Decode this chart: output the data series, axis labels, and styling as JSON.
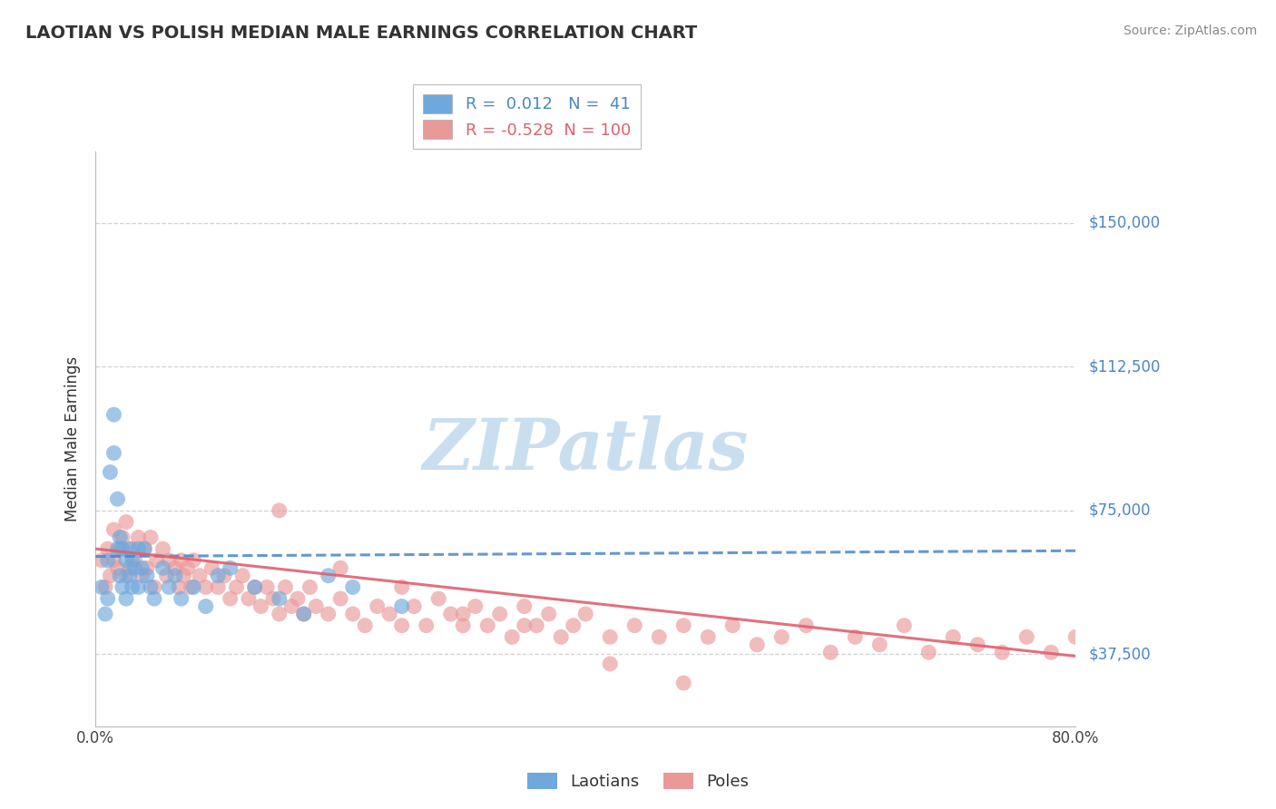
{
  "title": "LAOTIAN VS POLISH MEDIAN MALE EARNINGS CORRELATION CHART",
  "source": "Source: ZipAtlas.com",
  "ylabel": "Median Male Earnings",
  "ytick_labels": [
    "$37,500",
    "$75,000",
    "$112,500",
    "$150,000"
  ],
  "ytick_values": [
    37500,
    75000,
    112500,
    150000
  ],
  "ymin": 18750,
  "ymax": 168750,
  "xmin": 0.0,
  "xmax": 0.8,
  "laotian_R": 0.012,
  "laotian_N": 41,
  "polish_R": -0.528,
  "polish_N": 100,
  "laotian_color": "#6fa8dc",
  "polish_color": "#ea9999",
  "laotian_line_color": "#4a86c8",
  "polish_line_color": "#e06070",
  "grid_color": "#cccccc",
  "background_color": "#ffffff",
  "watermark": "ZIPatlas",
  "watermark_color": "#c9dff0",
  "legend_label_laotian": "Laotians",
  "legend_label_polish": "Poles",
  "laotian_trend_x": [
    0.0,
    0.8
  ],
  "laotian_trend_y": [
    63000,
    64500
  ],
  "polish_trend_x": [
    0.0,
    0.8
  ],
  "polish_trend_y": [
    65000,
    37000
  ],
  "laotian_x": [
    0.005,
    0.008,
    0.01,
    0.01,
    0.012,
    0.015,
    0.015,
    0.018,
    0.018,
    0.02,
    0.02,
    0.022,
    0.022,
    0.025,
    0.025,
    0.028,
    0.028,
    0.03,
    0.03,
    0.032,
    0.035,
    0.035,
    0.038,
    0.04,
    0.042,
    0.045,
    0.048,
    0.055,
    0.06,
    0.065,
    0.07,
    0.08,
    0.09,
    0.1,
    0.11,
    0.13,
    0.15,
    0.17,
    0.19,
    0.21,
    0.25
  ],
  "laotian_y": [
    55000,
    48000,
    62000,
    52000,
    85000,
    100000,
    90000,
    78000,
    65000,
    68000,
    58000,
    65000,
    55000,
    62000,
    52000,
    65000,
    58000,
    62000,
    55000,
    60000,
    65000,
    55000,
    60000,
    65000,
    58000,
    55000,
    52000,
    60000,
    55000,
    58000,
    52000,
    55000,
    50000,
    58000,
    60000,
    55000,
    52000,
    48000,
    58000,
    55000,
    50000
  ],
  "polish_x": [
    0.005,
    0.008,
    0.01,
    0.012,
    0.015,
    0.015,
    0.018,
    0.02,
    0.022,
    0.025,
    0.025,
    0.028,
    0.03,
    0.032,
    0.035,
    0.038,
    0.04,
    0.042,
    0.045,
    0.048,
    0.05,
    0.055,
    0.058,
    0.06,
    0.065,
    0.068,
    0.07,
    0.072,
    0.075,
    0.078,
    0.08,
    0.085,
    0.09,
    0.095,
    0.1,
    0.105,
    0.11,
    0.115,
    0.12,
    0.125,
    0.13,
    0.135,
    0.14,
    0.145,
    0.15,
    0.155,
    0.16,
    0.165,
    0.17,
    0.175,
    0.18,
    0.19,
    0.2,
    0.21,
    0.22,
    0.23,
    0.24,
    0.25,
    0.26,
    0.27,
    0.28,
    0.29,
    0.3,
    0.31,
    0.32,
    0.33,
    0.34,
    0.35,
    0.36,
    0.37,
    0.38,
    0.39,
    0.4,
    0.42,
    0.44,
    0.46,
    0.48,
    0.5,
    0.52,
    0.54,
    0.56,
    0.58,
    0.6,
    0.62,
    0.64,
    0.66,
    0.68,
    0.7,
    0.72,
    0.74,
    0.76,
    0.78,
    0.48,
    0.3,
    0.35,
    0.25,
    0.42,
    0.2,
    0.15,
    0.8
  ],
  "polish_y": [
    62000,
    55000,
    65000,
    58000,
    62000,
    70000,
    60000,
    65000,
    68000,
    58000,
    72000,
    60000,
    65000,
    62000,
    68000,
    58000,
    65000,
    60000,
    68000,
    55000,
    62000,
    65000,
    58000,
    62000,
    60000,
    55000,
    62000,
    58000,
    60000,
    55000,
    62000,
    58000,
    55000,
    60000,
    55000,
    58000,
    52000,
    55000,
    58000,
    52000,
    55000,
    50000,
    55000,
    52000,
    48000,
    55000,
    50000,
    52000,
    48000,
    55000,
    50000,
    48000,
    52000,
    48000,
    45000,
    50000,
    48000,
    45000,
    50000,
    45000,
    52000,
    48000,
    45000,
    50000,
    45000,
    48000,
    42000,
    50000,
    45000,
    48000,
    42000,
    45000,
    48000,
    42000,
    45000,
    42000,
    45000,
    42000,
    45000,
    40000,
    42000,
    45000,
    38000,
    42000,
    40000,
    45000,
    38000,
    42000,
    40000,
    38000,
    42000,
    38000,
    30000,
    48000,
    45000,
    55000,
    35000,
    60000,
    75000,
    42000
  ]
}
